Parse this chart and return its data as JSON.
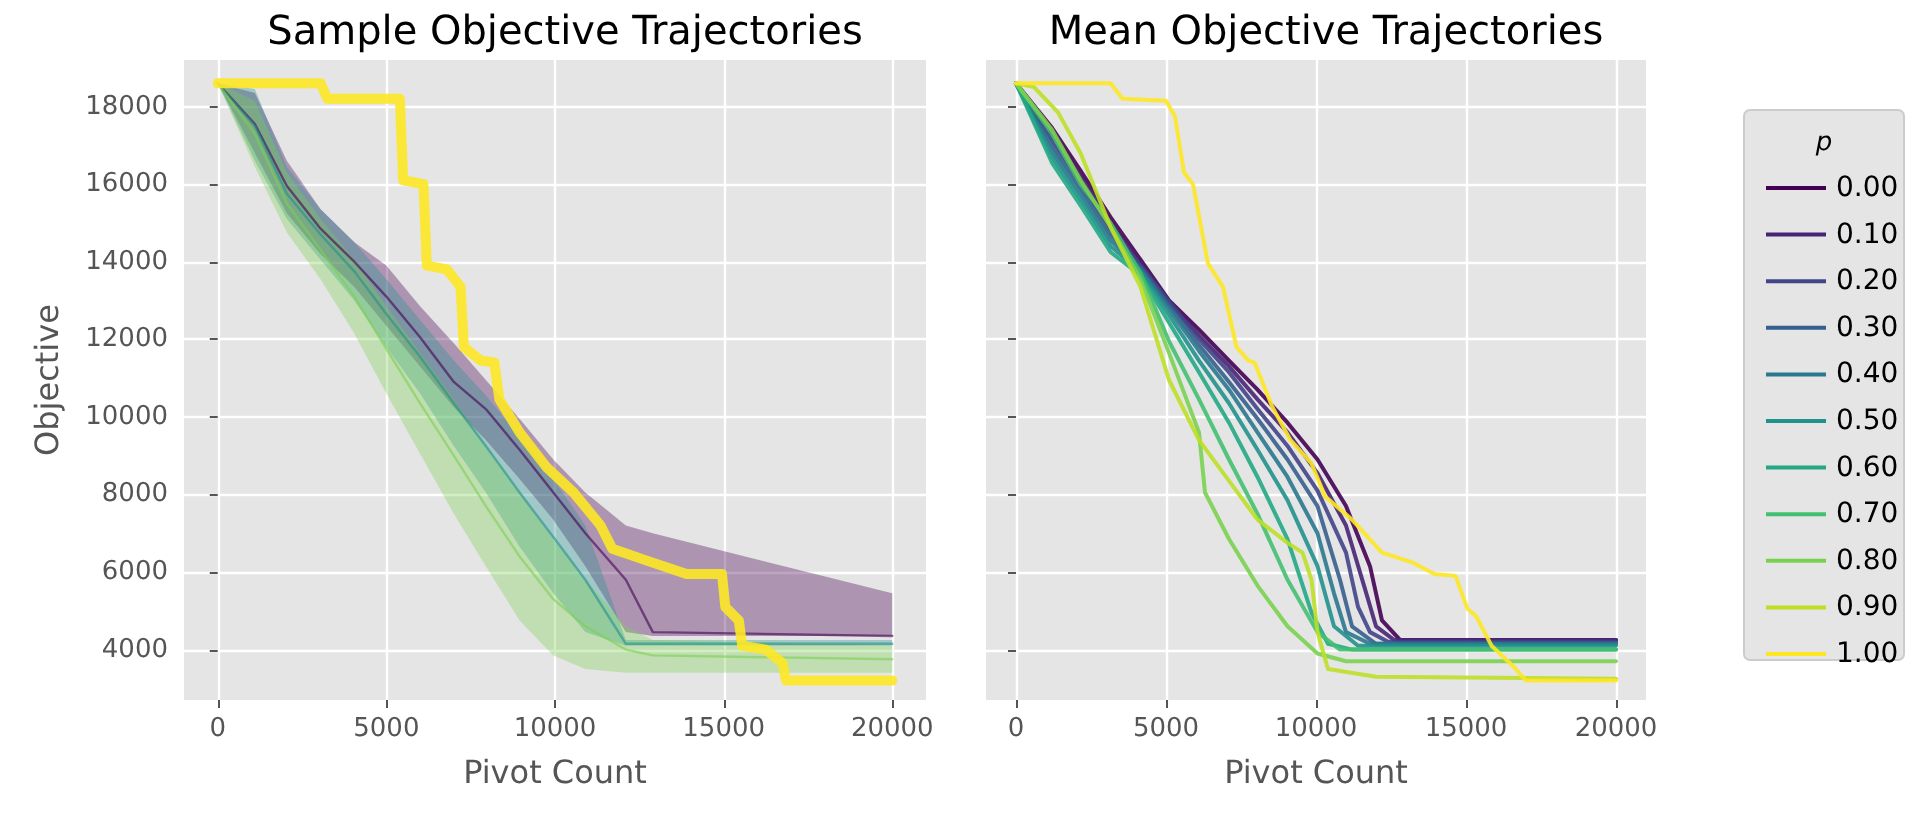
{
  "chart_data": [
    {
      "type": "line",
      "title": "Sample Objective Trajectories",
      "xlabel": "Pivot Count",
      "ylabel": "Objective",
      "xlim": [
        -1000,
        21000
      ],
      "ylim": [
        2700,
        19200
      ],
      "xticks": [
        0,
        5000,
        10000,
        15000,
        20000
      ],
      "yticks": [
        4000,
        6000,
        8000,
        10000,
        12000,
        14000,
        16000,
        18000
      ],
      "grid": true,
      "legend": false,
      "marker": "none",
      "line_style": "solid",
      "series": [
        {
          "color": "#440154",
          "x": [
            0,
            1100,
            2050,
            3050,
            4050,
            5000,
            6000,
            7000,
            7950,
            8950,
            9950,
            10900,
            12100,
            12900,
            20000
          ],
          "values": [
            18600,
            17550,
            15950,
            14850,
            14000,
            13100,
            12050,
            10900,
            10200,
            9150,
            8050,
            7000,
            5800,
            4450,
            4350
          ],
          "lower": [
            18600,
            16800,
            15250,
            14200,
            13350,
            12350,
            11300,
            10250,
            9400,
            8400,
            7350,
            6150,
            4450,
            4350,
            4350
          ],
          "upper": [
            18600,
            18350,
            16600,
            15350,
            14500,
            13900,
            12850,
            11900,
            10950,
            9950,
            8900,
            8050,
            7200,
            7000,
            5450
          ]
        },
        {
          "color": "#21918c",
          "x": [
            0,
            1100,
            2050,
            3050,
            4050,
            5000,
            6000,
            7000,
            7950,
            8950,
            9950,
            10900,
            12100,
            12900,
            20000
          ],
          "values": [
            18600,
            17500,
            15750,
            14700,
            13750,
            12650,
            11550,
            10350,
            9250,
            8050,
            6900,
            5800,
            4150,
            4150,
            4150
          ],
          "lower": [
            18600,
            16600,
            15100,
            14050,
            13000,
            11800,
            10600,
            9250,
            8050,
            6650,
            5450,
            4450,
            4100,
            4100,
            4100
          ],
          "upper": [
            18600,
            18450,
            16450,
            15350,
            14500,
            13550,
            12500,
            11450,
            10550,
            9500,
            8400,
            7200,
            4250,
            4250,
            4250
          ]
        },
        {
          "color": "#7ad151",
          "x": [
            0,
            1100,
            2050,
            3050,
            4050,
            5000,
            6000,
            7000,
            7950,
            8950,
            9950,
            10900,
            12100,
            12900,
            20000
          ],
          "values": [
            18600,
            17300,
            15500,
            14300,
            13100,
            11750,
            10350,
            9000,
            7700,
            6400,
            5300,
            4600,
            4000,
            3850,
            3750
          ],
          "lower": [
            18600,
            16450,
            14750,
            13550,
            12150,
            10600,
            9050,
            7500,
            6150,
            4750,
            3850,
            3500,
            3400,
            3400,
            3400
          ],
          "upper": [
            18600,
            18150,
            16300,
            15100,
            14050,
            12850,
            11650,
            10450,
            9250,
            8050,
            6850,
            5800,
            4600,
            4250,
            4100
          ]
        },
        {
          "color": "#fde725",
          "x": [
            0,
            3050,
            3250,
            5400,
            5500,
            6100,
            6200,
            6800,
            7200,
            7300,
            7800,
            8200,
            8350,
            8950,
            9750,
            10550,
            11350,
            11700,
            12700,
            13900,
            14950,
            15050,
            15450,
            15550,
            16250,
            16750,
            16850,
            20000
          ],
          "values": [
            18600,
            18600,
            18200,
            18200,
            16100,
            16000,
            13900,
            13800,
            13350,
            11800,
            11450,
            11400,
            10450,
            9600,
            8700,
            8050,
            7200,
            6600,
            6300,
            5950,
            5950,
            5100,
            4750,
            4100,
            4000,
            3650,
            3200,
            3200
          ]
        }
      ]
    },
    {
      "type": "line",
      "title": "Mean Objective Trajectories",
      "xlabel": "Pivot Count",
      "legend_title": "p",
      "xlim": [
        -1000,
        21000
      ],
      "ylim": [
        2700,
        19200
      ],
      "xticks": [
        0,
        5000,
        10000,
        15000,
        20000
      ],
      "yticks": [
        4000,
        6000,
        8000,
        10000,
        12000,
        14000,
        16000,
        18000
      ],
      "tick_labels": "x",
      "grid": true,
      "legend": "right",
      "marker": "none",
      "line_style": "solid",
      "series": [
        {
          "name": "0.00",
          "color": "#440154",
          "x": [
            0,
            1200,
            2150,
            3150,
            4150,
            5100,
            6100,
            7100,
            8050,
            9050,
            10050,
            11000,
            11800,
            12200,
            12800,
            20000
          ],
          "values": [
            18600,
            17450,
            16350,
            15150,
            14050,
            13000,
            12250,
            11450,
            10700,
            9850,
            8900,
            7700,
            6150,
            4750,
            4250,
            4250
          ]
        },
        {
          "name": "0.10",
          "color": "#482475",
          "x": [
            0,
            1200,
            2150,
            3150,
            4150,
            5100,
            6100,
            7100,
            8050,
            9050,
            10050,
            11000,
            11600,
            12000,
            12600,
            20000
          ],
          "values": [
            18600,
            17300,
            16200,
            15000,
            13950,
            12950,
            12100,
            11300,
            10450,
            9600,
            8550,
            7200,
            5650,
            4600,
            4250,
            4250
          ]
        },
        {
          "name": "0.20",
          "color": "#414487",
          "x": [
            0,
            1200,
            2150,
            3150,
            4150,
            6100,
            7100,
            8050,
            9050,
            10050,
            11000,
            11400,
            11800,
            12400,
            20000
          ],
          "values": [
            18600,
            17150,
            16050,
            14850,
            13900,
            12000,
            11150,
            10200,
            9250,
            8100,
            6500,
            5100,
            4450,
            4200,
            4200
          ]
        },
        {
          "name": "0.30",
          "color": "#355f8d",
          "x": [
            0,
            1200,
            2150,
            3150,
            4150,
            6100,
            7100,
            8050,
            9050,
            10050,
            10800,
            11200,
            12000,
            20000
          ],
          "values": [
            18600,
            17000,
            15900,
            14700,
            13850,
            11850,
            10900,
            9950,
            8900,
            7700,
            5800,
            4600,
            4150,
            4150
          ]
        },
        {
          "name": "0.40",
          "color": "#2a788e",
          "x": [
            0,
            1200,
            2150,
            3150,
            4150,
            6100,
            7100,
            8050,
            9050,
            10050,
            10600,
            11000,
            11800,
            20000
          ],
          "values": [
            18600,
            16850,
            15750,
            14550,
            13800,
            11700,
            10700,
            9600,
            8450,
            7000,
            5450,
            4450,
            4150,
            4150
          ]
        },
        {
          "name": "0.50",
          "color": "#21918c",
          "x": [
            0,
            1200,
            2150,
            3150,
            4150,
            6100,
            7100,
            8050,
            9050,
            10050,
            10600,
            11400,
            20000
          ],
          "values": [
            18600,
            16700,
            15600,
            14400,
            13750,
            11450,
            10350,
            9150,
            7850,
            6150,
            4600,
            4100,
            4100
          ]
        },
        {
          "name": "0.60",
          "color": "#22a884",
          "x": [
            0,
            1200,
            2150,
            3150,
            4150,
            6100,
            7100,
            8050,
            9050,
            9850,
            10400,
            11200,
            20000
          ],
          "values": [
            18600,
            16550,
            15450,
            14250,
            13650,
            11150,
            9850,
            8450,
            6850,
            4950,
            4150,
            4000,
            4000
          ]
        },
        {
          "name": "0.70",
          "color": "#44bf70",
          "x": [
            0,
            1200,
            2150,
            3150,
            4150,
            5100,
            6100,
            7100,
            8050,
            9050,
            10050,
            10800,
            20000
          ],
          "values": [
            18600,
            17300,
            16000,
            15000,
            13700,
            11950,
            10450,
            8900,
            7500,
            5800,
            4450,
            4000,
            4000
          ]
        },
        {
          "name": "0.80",
          "color": "#7ad151",
          "x": [
            0,
            1200,
            2150,
            3150,
            4150,
            5100,
            6100,
            6300,
            7100,
            8050,
            9050,
            10050,
            11000,
            20000
          ],
          "values": [
            18600,
            17400,
            16100,
            14900,
            13550,
            11650,
            9600,
            8050,
            6850,
            5650,
            4600,
            3900,
            3700,
            3700
          ]
        },
        {
          "name": "0.90",
          "color": "#bddf26",
          "x": [
            0,
            600,
            1400,
            2150,
            3150,
            4150,
            5100,
            6100,
            7100,
            8050,
            9050,
            9550,
            9850,
            10050,
            10400,
            12000,
            20000
          ],
          "values": [
            18600,
            18500,
            17850,
            16800,
            14900,
            13350,
            10950,
            9400,
            8350,
            7350,
            6750,
            6500,
            5800,
            4450,
            3500,
            3300,
            3250
          ]
        },
        {
          "name": "1.00",
          "color": "#fde725",
          "x": [
            0,
            3150,
            3550,
            5000,
            5300,
            5600,
            5900,
            6400,
            6900,
            7350,
            7750,
            7950,
            8550,
            9150,
            9850,
            10300,
            11200,
            12200,
            13200,
            13950,
            14650,
            15050,
            15350,
            15850,
            16600,
            17000,
            20000
          ],
          "values": [
            18600,
            18600,
            18200,
            18150,
            17750,
            16300,
            16000,
            13950,
            13350,
            11800,
            11450,
            11400,
            10250,
            9400,
            8800,
            7950,
            7350,
            6500,
            6250,
            5950,
            5900,
            5050,
            4850,
            4100,
            3550,
            3200,
            3200
          ]
        }
      ]
    }
  ]
}
